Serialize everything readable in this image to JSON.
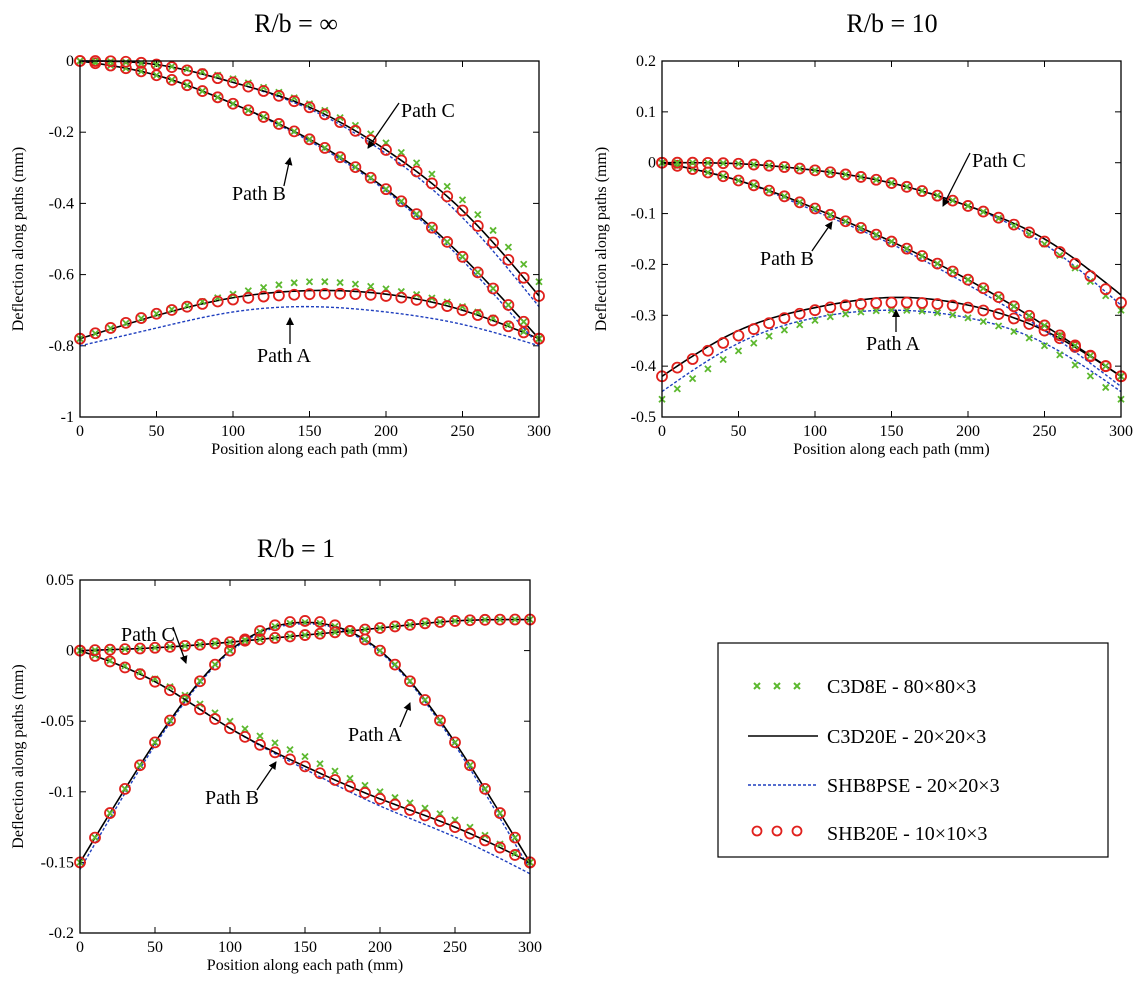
{
  "legend": {
    "entries": [
      {
        "label": "C3D8E - 80×80×3",
        "marker": "x",
        "color": "#5cb82e"
      },
      {
        "label": "C3D20E - 20×20×3",
        "marker": "line",
        "color": "#000000"
      },
      {
        "label": "SHB8PSE - 20×20×3",
        "marker": "dashed",
        "color": "#1f3fbf"
      },
      {
        "label": "SHB20E - 10×10×3",
        "marker": "o",
        "color": "#e0201c"
      }
    ]
  },
  "chart_data": [
    {
      "type": "line",
      "title": "R/b = ∞",
      "xlabel": "Position along each path (mm)",
      "ylabel": "Deflection along paths (mm)",
      "xlim": [
        0,
        300
      ],
      "ylim": [
        -1,
        0
      ],
      "xticks": [
        "0",
        "50",
        "100",
        "150",
        "200",
        "250",
        "300"
      ],
      "yticks": [
        "0",
        "-0.2",
        "-0.4",
        "-0.6",
        "-0.8",
        "-1"
      ],
      "annotations": [
        {
          "text": "Path A",
          "x": 150,
          "y": -0.69
        },
        {
          "text": "Path B",
          "x": 150,
          "y": -0.25
        },
        {
          "text": "Path C",
          "x": 195,
          "y": -0.23
        }
      ],
      "paths": [
        {
          "name": "Path A",
          "x": [
            0,
            50,
            100,
            150,
            200,
            250,
            300
          ],
          "C3D8E": [
            -0.78,
            -0.71,
            -0.655,
            -0.62,
            -0.64,
            -0.69,
            -0.78
          ],
          "C3D20E": [
            -0.78,
            -0.715,
            -0.665,
            -0.645,
            -0.655,
            -0.7,
            -0.78
          ],
          "SHB8PSE": [
            -0.8,
            -0.75,
            -0.705,
            -0.69,
            -0.705,
            -0.74,
            -0.8
          ],
          "SHB20E": [
            -0.78,
            -0.71,
            -0.67,
            -0.655,
            -0.66,
            -0.7,
            -0.78
          ]
        },
        {
          "name": "Path B",
          "x": [
            0,
            50,
            100,
            150,
            200,
            250,
            300
          ],
          "C3D8E": [
            0,
            -0.04,
            -0.12,
            -0.22,
            -0.36,
            -0.55,
            -0.78
          ],
          "C3D20E": [
            0,
            -0.04,
            -0.12,
            -0.22,
            -0.36,
            -0.55,
            -0.78
          ],
          "SHB8PSE": [
            0,
            -0.04,
            -0.12,
            -0.225,
            -0.365,
            -0.56,
            -0.8
          ],
          "SHB20E": [
            0,
            -0.04,
            -0.12,
            -0.22,
            -0.36,
            -0.55,
            -0.78
          ]
        },
        {
          "name": "Path C",
          "x": [
            0,
            50,
            100,
            150,
            200,
            250,
            300
          ],
          "C3D8E": [
            0,
            -0.01,
            -0.05,
            -0.12,
            -0.23,
            -0.39,
            -0.62
          ],
          "C3D20E": [
            0,
            -0.01,
            -0.06,
            -0.13,
            -0.25,
            -0.42,
            -0.66
          ],
          "SHB8PSE": [
            0,
            -0.01,
            -0.06,
            -0.135,
            -0.26,
            -0.44,
            -0.69
          ],
          "SHB20E": [
            0,
            -0.01,
            -0.06,
            -0.13,
            -0.25,
            -0.42,
            -0.66
          ]
        }
      ]
    },
    {
      "type": "line",
      "title": "R/b = 10",
      "xlabel": "Position along each path (mm)",
      "ylabel": "Deflection along paths (mm)",
      "xlim": [
        0,
        300
      ],
      "ylim": [
        -0.5,
        0.2
      ],
      "xticks": [
        "0",
        "50",
        "100",
        "150",
        "200",
        "250",
        "300"
      ],
      "yticks": [
        "0.2",
        "0.1",
        "0",
        "-0.1",
        "-0.2",
        "-0.3",
        "-0.4",
        "-0.5"
      ],
      "annotations": [
        {
          "text": "Path A",
          "x": 150,
          "y": -0.28
        },
        {
          "text": "Path B",
          "x": 115,
          "y": -0.12
        },
        {
          "text": "Path C",
          "x": 200,
          "y": -0.07
        }
      ],
      "paths": [
        {
          "name": "Path A",
          "x": [
            0,
            50,
            100,
            150,
            200,
            250,
            300
          ],
          "C3D8E": [
            -0.465,
            -0.37,
            -0.31,
            -0.29,
            -0.305,
            -0.36,
            -0.465
          ],
          "C3D20E": [
            -0.42,
            -0.33,
            -0.285,
            -0.265,
            -0.28,
            -0.33,
            -0.42
          ],
          "SHB8PSE": [
            -0.45,
            -0.355,
            -0.305,
            -0.29,
            -0.305,
            -0.355,
            -0.45
          ],
          "SHB20E": [
            -0.42,
            -0.34,
            -0.29,
            -0.275,
            -0.285,
            -0.33,
            -0.42
          ]
        },
        {
          "name": "Path B",
          "x": [
            0,
            50,
            100,
            150,
            200,
            250,
            300
          ],
          "C3D8E": [
            0,
            -0.035,
            -0.09,
            -0.155,
            -0.23,
            -0.32,
            -0.42
          ],
          "C3D20E": [
            0,
            -0.035,
            -0.09,
            -0.155,
            -0.23,
            -0.32,
            -0.42
          ],
          "SHB8PSE": [
            0,
            -0.035,
            -0.095,
            -0.16,
            -0.24,
            -0.33,
            -0.44
          ],
          "SHB20E": [
            0,
            -0.035,
            -0.09,
            -0.155,
            -0.23,
            -0.32,
            -0.42
          ]
        },
        {
          "name": "Path C",
          "x": [
            0,
            50,
            100,
            150,
            200,
            250,
            300
          ],
          "C3D8E": [
            0,
            -0.002,
            -0.015,
            -0.04,
            -0.085,
            -0.16,
            -0.29
          ],
          "C3D20E": [
            0,
            -0.002,
            -0.015,
            -0.04,
            -0.085,
            -0.15,
            -0.26
          ],
          "SHB8PSE": [
            0,
            -0.002,
            -0.015,
            -0.04,
            -0.085,
            -0.16,
            -0.28
          ],
          "SHB20E": [
            0,
            -0.002,
            -0.015,
            -0.04,
            -0.085,
            -0.155,
            -0.275
          ]
        }
      ]
    },
    {
      "type": "line",
      "title": "R/b = 1",
      "xlabel": "Position along each path (mm)",
      "ylabel": "Deflection along paths (mm)",
      "xlim": [
        0,
        300
      ],
      "ylim": [
        -0.2,
        0.05
      ],
      "xticks": [
        "0",
        "50",
        "100",
        "150",
        "200",
        "250",
        "300"
      ],
      "yticks": [
        "0.05",
        "0",
        "-0.05",
        "-0.1",
        "-0.15",
        "-0.2"
      ],
      "annotations": [
        {
          "text": "Path A",
          "x": 230,
          "y": -0.03
        },
        {
          "text": "Path B",
          "x": 130,
          "y": -0.08
        },
        {
          "text": "Path C",
          "x": 70,
          "y": 0.003
        }
      ],
      "paths": [
        {
          "name": "Path A",
          "x": [
            0,
            50,
            100,
            150,
            200,
            250,
            300
          ],
          "C3D8E": [
            -0.15,
            -0.065,
            0.0,
            0.02,
            0.0,
            -0.065,
            -0.15
          ],
          "C3D20E": [
            -0.15,
            -0.065,
            0.0,
            0.02,
            0.0,
            -0.065,
            -0.15
          ],
          "SHB8PSE": [
            -0.155,
            -0.067,
            -0.001,
            0.019,
            -0.001,
            -0.067,
            -0.155
          ],
          "SHB20E": [
            -0.15,
            -0.065,
            0.0,
            0.021,
            0.0,
            -0.065,
            -0.15
          ]
        },
        {
          "name": "Path B",
          "x": [
            0,
            50,
            100,
            150,
            200,
            250,
            300
          ],
          "C3D8E": [
            0,
            -0.02,
            -0.05,
            -0.075,
            -0.1,
            -0.12,
            -0.15
          ],
          "C3D20E": [
            0,
            -0.022,
            -0.055,
            -0.082,
            -0.105,
            -0.125,
            -0.15
          ],
          "SHB8PSE": [
            0,
            -0.022,
            -0.055,
            -0.084,
            -0.11,
            -0.132,
            -0.158
          ],
          "SHB20E": [
            0,
            -0.022,
            -0.055,
            -0.082,
            -0.105,
            -0.125,
            -0.15
          ]
        },
        {
          "name": "Path C",
          "x": [
            0,
            50,
            100,
            150,
            200,
            250,
            300
          ],
          "C3D8E": [
            0,
            0.002,
            0.006,
            0.011,
            0.016,
            0.021,
            0.022
          ],
          "C3D20E": [
            0,
            0.002,
            0.006,
            0.011,
            0.016,
            0.021,
            0.022
          ],
          "SHB8PSE": [
            0,
            0.002,
            0.006,
            0.011,
            0.016,
            0.021,
            0.022
          ],
          "SHB20E": [
            0,
            0.002,
            0.006,
            0.011,
            0.016,
            0.021,
            0.022
          ]
        }
      ]
    }
  ]
}
